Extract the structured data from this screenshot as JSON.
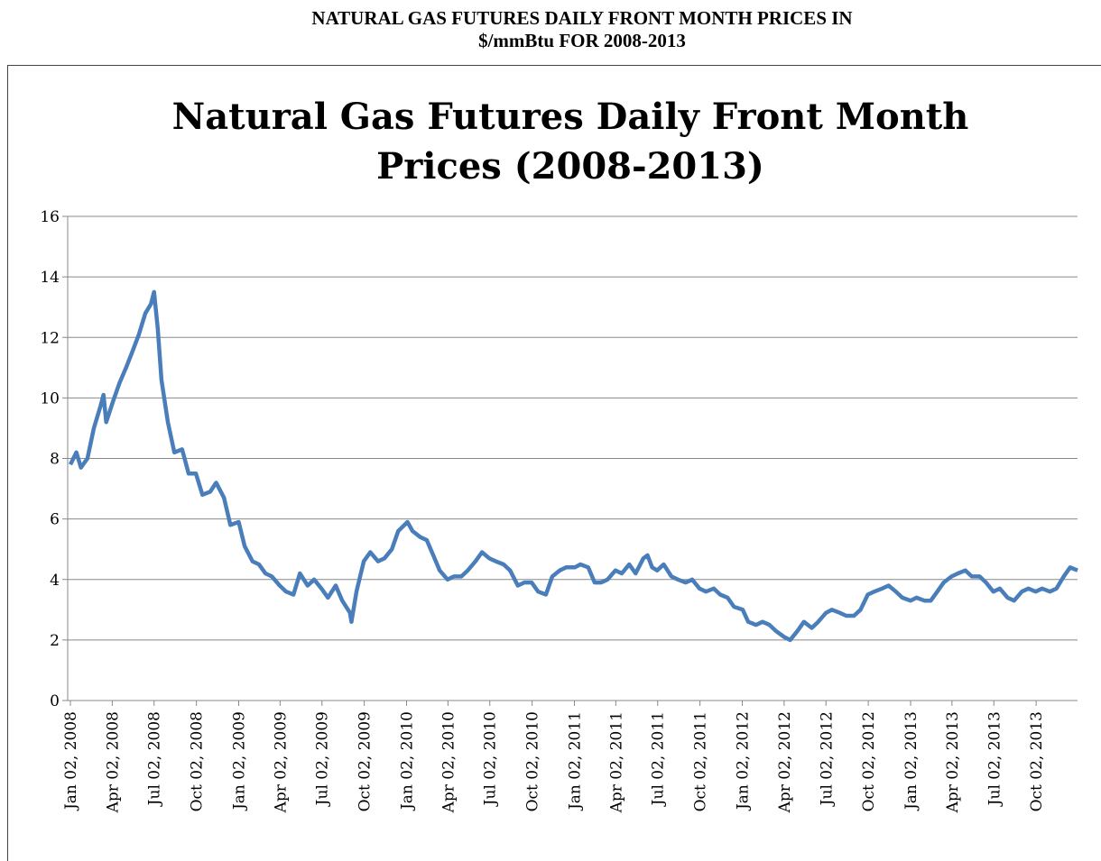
{
  "header": {
    "title_line1": "NATURAL GAS FUTURES DAILY FRONT MONTH PRICES IN",
    "title_line2": "$/mmBtu FOR 2008-2013"
  },
  "chart_data": {
    "type": "line",
    "title_line1": "Natural Gas Futures Daily Front Month",
    "title_line2": "Prices (2008-2013)",
    "color": "#4a7ebb",
    "grid": true,
    "ylim": [
      0,
      16
    ],
    "yticks": [
      0,
      2,
      4,
      6,
      8,
      10,
      12,
      14,
      16
    ],
    "xlim": [
      "2008-01-02",
      "2013-12-31"
    ],
    "xticks": [
      {
        "value": "2008-01-02",
        "label": "Jan 02, 2008"
      },
      {
        "value": "2008-04-02",
        "label": "Apr 02, 2008"
      },
      {
        "value": "2008-07-02",
        "label": "Jul 02, 2008"
      },
      {
        "value": "2008-10-02",
        "label": "Oct 02, 2008"
      },
      {
        "value": "2009-01-02",
        "label": "Jan 02, 2009"
      },
      {
        "value": "2009-04-02",
        "label": "Apr 02, 2009"
      },
      {
        "value": "2009-07-02",
        "label": "Jul 02, 2009"
      },
      {
        "value": "2009-10-02",
        "label": "Oct 02, 2009"
      },
      {
        "value": "2010-01-02",
        "label": "Jan 02, 2010"
      },
      {
        "value": "2010-04-02",
        "label": "Apr 02, 2010"
      },
      {
        "value": "2010-07-02",
        "label": "Jul 02, 2010"
      },
      {
        "value": "2010-10-02",
        "label": "Oct 02, 2010"
      },
      {
        "value": "2011-01-02",
        "label": "Jan 02, 2011"
      },
      {
        "value": "2011-04-02",
        "label": "Apr 02, 2011"
      },
      {
        "value": "2011-07-02",
        "label": "Jul 02, 2011"
      },
      {
        "value": "2011-10-02",
        "label": "Oct 02, 2011"
      },
      {
        "value": "2012-01-02",
        "label": "Jan 02, 2012"
      },
      {
        "value": "2012-04-02",
        "label": "Apr 02, 2012"
      },
      {
        "value": "2012-07-02",
        "label": "Jul 02, 2012"
      },
      {
        "value": "2012-10-02",
        "label": "Oct 02, 2012"
      },
      {
        "value": "2013-01-02",
        "label": "Jan 02, 2013"
      },
      {
        "value": "2013-04-02",
        "label": "Apr 02, 2013"
      },
      {
        "value": "2013-07-02",
        "label": "Jul 02, 2013"
      },
      {
        "value": "2013-10-02",
        "label": "Oct 02, 2013"
      }
    ],
    "x": [
      "2008-01-02",
      "2008-01-15",
      "2008-01-25",
      "2008-02-08",
      "2008-02-22",
      "2008-03-07",
      "2008-03-14",
      "2008-03-20",
      "2008-04-04",
      "2008-04-18",
      "2008-05-02",
      "2008-05-15",
      "2008-05-30",
      "2008-06-13",
      "2008-06-25",
      "2008-07-02",
      "2008-07-10",
      "2008-07-18",
      "2008-08-01",
      "2008-08-15",
      "2008-09-01",
      "2008-09-15",
      "2008-10-01",
      "2008-10-15",
      "2008-11-01",
      "2008-11-14",
      "2008-12-01",
      "2008-12-15",
      "2009-01-02",
      "2009-01-15",
      "2009-02-01",
      "2009-02-15",
      "2009-03-01",
      "2009-03-15",
      "2009-04-01",
      "2009-04-15",
      "2009-05-01",
      "2009-05-15",
      "2009-06-01",
      "2009-06-15",
      "2009-07-01",
      "2009-07-15",
      "2009-08-01",
      "2009-08-15",
      "2009-09-01",
      "2009-09-04",
      "2009-09-15",
      "2009-10-01",
      "2009-10-15",
      "2009-11-01",
      "2009-11-15",
      "2009-12-01",
      "2009-12-15",
      "2010-01-04",
      "2010-01-15",
      "2010-02-01",
      "2010-02-15",
      "2010-03-01",
      "2010-03-15",
      "2010-04-01",
      "2010-04-15",
      "2010-05-01",
      "2010-05-15",
      "2010-06-01",
      "2010-06-15",
      "2010-07-01",
      "2010-07-15",
      "2010-08-01",
      "2010-08-15",
      "2010-09-01",
      "2010-09-15",
      "2010-10-01",
      "2010-10-15",
      "2010-11-01",
      "2010-11-15",
      "2010-12-01",
      "2010-12-15",
      "2011-01-03",
      "2011-01-15",
      "2011-02-01",
      "2011-02-15",
      "2011-03-01",
      "2011-03-15",
      "2011-04-01",
      "2011-04-15",
      "2011-05-01",
      "2011-05-15",
      "2011-06-01",
      "2011-06-10",
      "2011-06-20",
      "2011-07-01",
      "2011-07-15",
      "2011-08-01",
      "2011-08-15",
      "2011-09-01",
      "2011-09-15",
      "2011-10-01",
      "2011-10-15",
      "2011-11-01",
      "2011-11-15",
      "2011-12-01",
      "2011-12-15",
      "2012-01-03",
      "2012-01-15",
      "2012-02-01",
      "2012-02-15",
      "2012-03-01",
      "2012-03-15",
      "2012-04-02",
      "2012-04-15",
      "2012-05-01",
      "2012-05-15",
      "2012-06-01",
      "2012-06-15",
      "2012-07-02",
      "2012-07-15",
      "2012-08-01",
      "2012-08-15",
      "2012-09-01",
      "2012-09-15",
      "2012-10-01",
      "2012-10-15",
      "2012-11-01",
      "2012-11-15",
      "2012-12-01",
      "2012-12-15",
      "2013-01-02",
      "2013-01-15",
      "2013-02-01",
      "2013-02-15",
      "2013-03-01",
      "2013-03-15",
      "2013-04-01",
      "2013-04-15",
      "2013-05-01",
      "2013-05-15",
      "2013-06-01",
      "2013-06-15",
      "2013-07-01",
      "2013-07-15",
      "2013-08-01",
      "2013-08-15",
      "2013-09-01",
      "2013-09-15",
      "2013-10-01",
      "2013-10-15",
      "2013-11-01",
      "2013-11-15",
      "2013-12-01",
      "2013-12-15",
      "2013-12-31"
    ],
    "values": [
      7.8,
      8.2,
      7.7,
      8.0,
      9.0,
      9.7,
      10.1,
      9.2,
      9.9,
      10.5,
      11.0,
      11.5,
      12.1,
      12.8,
      13.1,
      13.5,
      12.3,
      10.6,
      9.2,
      8.2,
      8.3,
      7.5,
      7.5,
      6.8,
      6.9,
      7.2,
      6.7,
      5.8,
      5.9,
      5.1,
      4.6,
      4.5,
      4.2,
      4.1,
      3.8,
      3.6,
      3.5,
      4.2,
      3.8,
      4.0,
      3.7,
      3.4,
      3.8,
      3.3,
      2.9,
      2.6,
      3.6,
      4.6,
      4.9,
      4.6,
      4.7,
      5.0,
      5.6,
      5.9,
      5.6,
      5.4,
      5.3,
      4.8,
      4.3,
      4.0,
      4.1,
      4.1,
      4.3,
      4.6,
      4.9,
      4.7,
      4.6,
      4.5,
      4.3,
      3.8,
      3.9,
      3.9,
      3.6,
      3.5,
      4.1,
      4.3,
      4.4,
      4.4,
      4.5,
      4.4,
      3.9,
      3.9,
      4.0,
      4.3,
      4.2,
      4.5,
      4.2,
      4.7,
      4.8,
      4.4,
      4.3,
      4.5,
      4.1,
      4.0,
      3.9,
      4.0,
      3.7,
      3.6,
      3.7,
      3.5,
      3.4,
      3.1,
      3.0,
      2.6,
      2.5,
      2.6,
      2.5,
      2.3,
      2.1,
      2.0,
      2.3,
      2.6,
      2.4,
      2.6,
      2.9,
      3.0,
      2.9,
      2.8,
      2.8,
      3.0,
      3.5,
      3.6,
      3.7,
      3.8,
      3.6,
      3.4,
      3.3,
      3.4,
      3.3,
      3.3,
      3.6,
      3.9,
      4.1,
      4.2,
      4.3,
      4.1,
      4.1,
      3.9,
      3.6,
      3.7,
      3.4,
      3.3,
      3.6,
      3.7,
      3.6,
      3.7,
      3.6,
      3.7,
      4.1,
      4.4,
      4.3
    ]
  }
}
